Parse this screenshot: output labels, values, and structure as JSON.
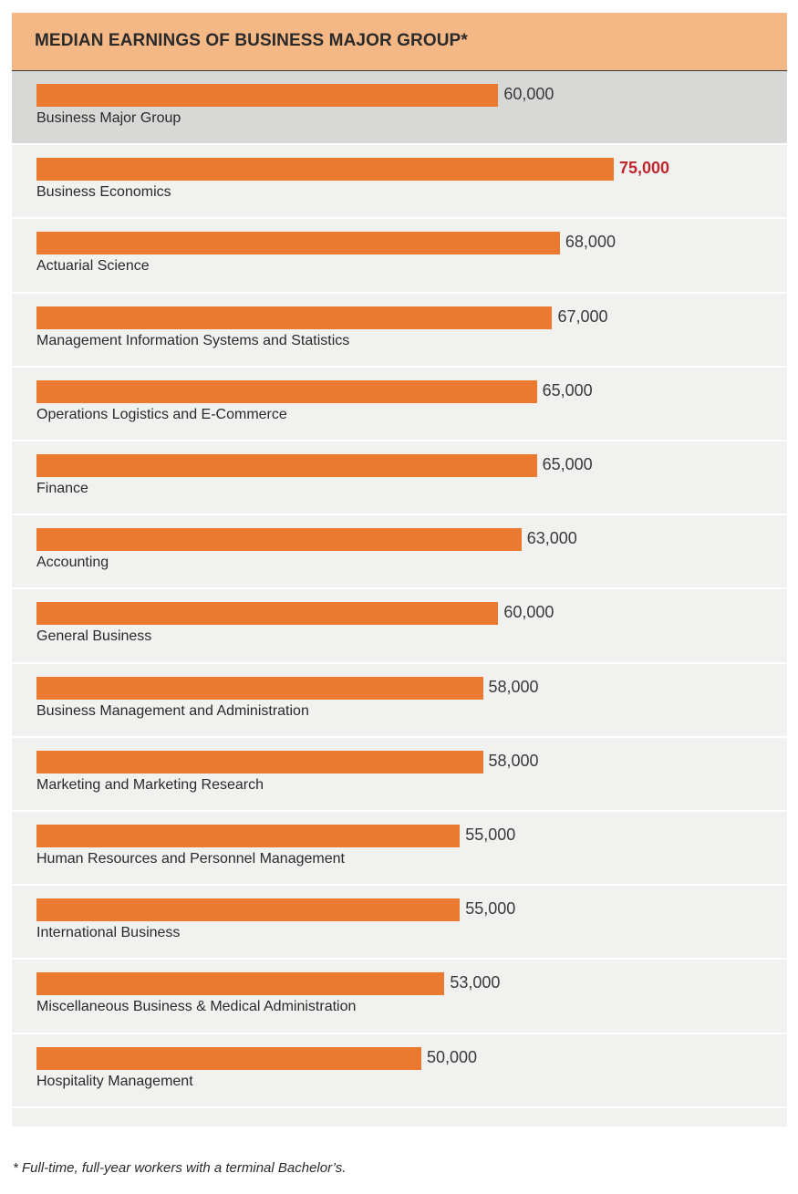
{
  "chart_data": {
    "type": "bar",
    "orientation": "horizontal",
    "title": "MEDIAN EARNINGS OF BUSINESS MAJOR GROUP*",
    "categories": [
      "Business Major Group",
      "Business Economics",
      "Actuarial Science",
      "Management Information Systems and Statistics",
      "Operations Logistics and E-Commerce",
      "Finance",
      "Accounting",
      "General Business",
      "Business Management and Administration",
      "Marketing and Marketing Research",
      "Human Resources and Personnel Management",
      "International Business",
      "Miscellaneous Business & Medical Administration",
      "Hospitality Management"
    ],
    "values": [
      60000,
      75000,
      68000,
      67000,
      65000,
      65000,
      63000,
      60000,
      58000,
      58000,
      55000,
      55000,
      53000,
      50000
    ],
    "value_labels": [
      "60,000",
      "75,000",
      "68,000",
      "67,000",
      "65,000",
      "65,000",
      "63,000",
      "60,000",
      "58,000",
      "58,000",
      "55,000",
      "55,000",
      "53,000",
      "50,000"
    ],
    "highlighted_row": "Business Major Group",
    "emphasized_value": "75,000",
    "xlabel": "",
    "ylabel": "",
    "grid": false,
    "legend": "none"
  },
  "footnote": "* Full-time, full-year workers with a terminal Bachelor’s.",
  "colors": {
    "header_bg": "#f4b887",
    "bar": "#ea7a2f",
    "highlight_row_bg": "#d8d8d6",
    "panel_bg": "#f1f1ef",
    "emphasis_text": "#c0272d"
  }
}
